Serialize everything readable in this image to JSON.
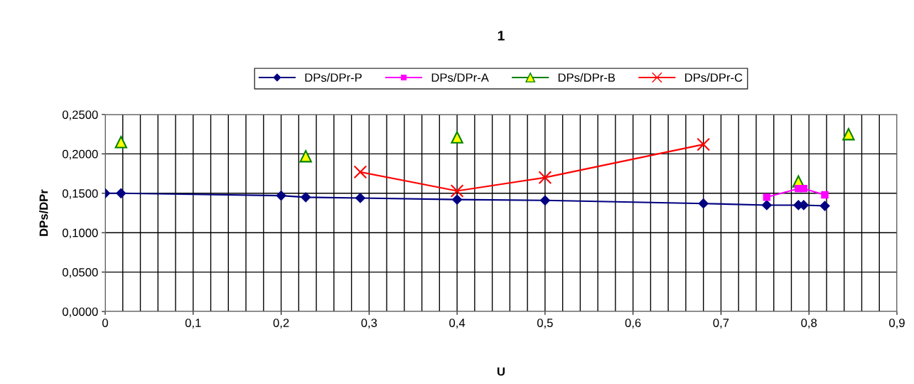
{
  "chart_data": {
    "type": "line",
    "title": "1",
    "xlabel": "U",
    "ylabel": "DPs/DPr",
    "series": [
      {
        "name": "DPs/DPr-P",
        "type": "line",
        "marker": "diamond",
        "color": "#000080",
        "x": [
          0,
          0.018,
          0.2,
          0.228,
          0.29,
          0.4,
          0.5,
          0.68,
          0.752,
          0.788,
          0.794,
          0.818
        ],
        "values": [
          0.15,
          0.15,
          0.147,
          0.145,
          0.144,
          0.142,
          0.141,
          0.137,
          0.135,
          0.135,
          0.135,
          0.134
        ]
      },
      {
        "name": "DPs/DPr-A",
        "type": "line",
        "marker": "square",
        "color": "#ff00ff",
        "x": [
          0.752,
          0.788,
          0.794,
          0.818
        ],
        "values": [
          0.145,
          0.156,
          0.156,
          0.148
        ]
      },
      {
        "name": "DPs/DPr-B",
        "type": "scatter",
        "marker": "triangle",
        "color": "#008000",
        "x": [
          0.018,
          0.228,
          0.4,
          0.788,
          0.845
        ],
        "values": [
          0.215,
          0.197,
          0.221,
          0.165,
          0.225
        ]
      },
      {
        "name": "DPs/DPr-C",
        "type": "line",
        "marker": "cross",
        "color": "#ff0000",
        "x": [
          0.29,
          0.4,
          0.5,
          0.68
        ],
        "values": [
          0.177,
          0.153,
          0.17,
          0.212
        ]
      }
    ],
    "xlim": [
      0,
      0.9
    ],
    "xticks": [
      0,
      {
        "value": 0.1,
        "label": "0,1"
      },
      {
        "value": 0.2,
        "label": "0,2"
      },
      {
        "value": 0.3,
        "label": "0,3"
      },
      {
        "value": 0.4,
        "label": "0,4"
      },
      {
        "value": 0.5,
        "label": "0,5"
      },
      {
        "value": 0.6,
        "label": "0,6"
      },
      {
        "value": 0.7,
        "label": "0,7"
      },
      {
        "value": 0.8,
        "label": "0,8"
      },
      {
        "value": 0.9,
        "label": "0,9"
      }
    ],
    "ylim": [
      0,
      0.25
    ],
    "yticks": [
      {
        "value": 0,
        "label": "0,0000"
      },
      {
        "value": 0.05,
        "label": "0,0500"
      },
      {
        "value": 0.1,
        "label": "0,1000"
      },
      {
        "value": 0.15,
        "label": "0,1500"
      },
      {
        "value": 0.2,
        "label": "0,2000"
      },
      {
        "value": 0.25,
        "label": "0,2500"
      }
    ],
    "grid": true,
    "legend": "top"
  }
}
